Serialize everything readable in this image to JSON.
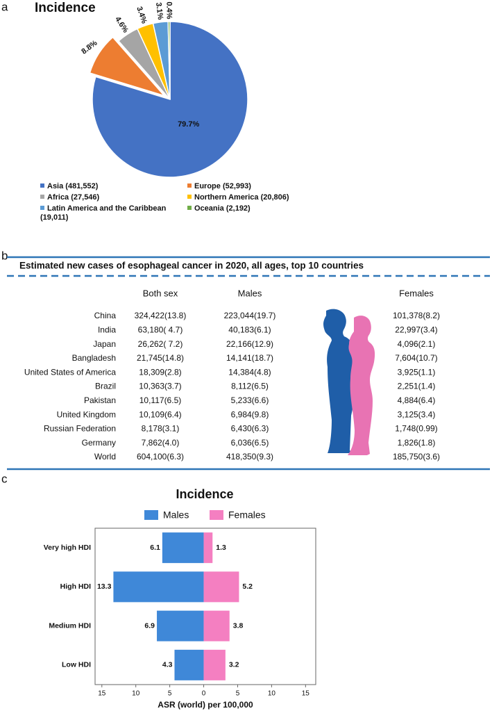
{
  "panel_labels": [
    "a",
    "b",
    "c"
  ],
  "chart_data": [
    {
      "type": "pie",
      "title": "Incidence",
      "categories": [
        "Asia",
        "Europe",
        "Africa",
        "Northern America",
        "Latin America and the Caribbean",
        "Oceania"
      ],
      "legend_labels": [
        "Asia (481,552)",
        "Europe (52,993)",
        "Africa  (27,546)",
        "Northern America (20,806)",
        "Latin America and the Caribbean (19,011)",
        "Oceania (2,192)"
      ],
      "values": [
        79.7,
        8.8,
        4.6,
        3.4,
        3.1,
        0.4
      ],
      "value_labels": [
        "79.7%",
        "8.8%",
        "4.6%",
        "3.4%",
        "3.1%",
        "0.4%"
      ],
      "colors": [
        "#4472c4",
        "#ed7d31",
        "#a5a5a5",
        "#ffc000",
        "#5b9bd5",
        "#70ad47"
      ],
      "explode": [
        false,
        true,
        false,
        false,
        false,
        false
      ]
    },
    {
      "type": "bar",
      "title": "Incidence",
      "orientation": "horizontal",
      "categories": [
        "Very high HDI",
        "High HDI",
        "Medium HDI",
        "Low HDI"
      ],
      "series": [
        {
          "name": "Males",
          "color": "#3f88d8",
          "direction": "left",
          "values": [
            6.1,
            13.3,
            6.9,
            4.3
          ]
        },
        {
          "name": "Females",
          "color": "#f47fc1",
          "direction": "right",
          "values": [
            1.3,
            5.2,
            3.8,
            3.2
          ]
        }
      ],
      "xlabel": "ASR (world) per 100,000",
      "xlim": [
        -16,
        16.5
      ],
      "xticks": [
        {
          "value": -15,
          "label": "15"
        },
        {
          "value": -10,
          "label": "10"
        },
        {
          "value": -5,
          "label": "5"
        },
        0,
        5,
        10,
        15
      ]
    }
  ],
  "table": {
    "title": "Estimated new cases of esophageal cancer in 2020, all ages, top 10 countries",
    "columns": [
      "Both sex",
      "Males",
      "Females"
    ],
    "rows": [
      [
        "China",
        "324,422(13.8)",
        "223,044(19.7)",
        "101,378(8.2)"
      ],
      [
        "India",
        "63,180( 4.7)",
        "40,183(6.1)",
        "22,997(3.4)"
      ],
      [
        "Japan",
        "26,262( 7.2)",
        "22,166(12.9)",
        "4,096(2.1)"
      ],
      [
        "Bangladesh",
        "21,745(14.8)",
        "14,141(18.7)",
        "7,604(10.7)"
      ],
      [
        "United States of America",
        "18,309(2.8)",
        "14,384(4.8)",
        "3,925(1.1)"
      ],
      [
        "Brazil",
        "10,363(3.7)",
        "8,112(6.5)",
        "2,251(1.4)"
      ],
      [
        "Pakistan",
        "10,117(6.5)",
        "5,233(6.6)",
        "4,884(6.4)"
      ],
      [
        "United Kingdom",
        "10,109(6.4)",
        "6,984(9.8)",
        "3,125(3.4)"
      ],
      [
        "Russian Federation",
        "8,178(3.1)",
        "6,430(6.3)",
        "1,748(0.99)"
      ],
      [
        "Germany",
        "7,862(4.0)",
        "6,036(6.5)",
        "1,826(1.8)"
      ],
      [
        "World",
        "604,100(6.3)",
        "418,350(9.3)",
        "185,750(3.6)"
      ]
    ]
  }
}
